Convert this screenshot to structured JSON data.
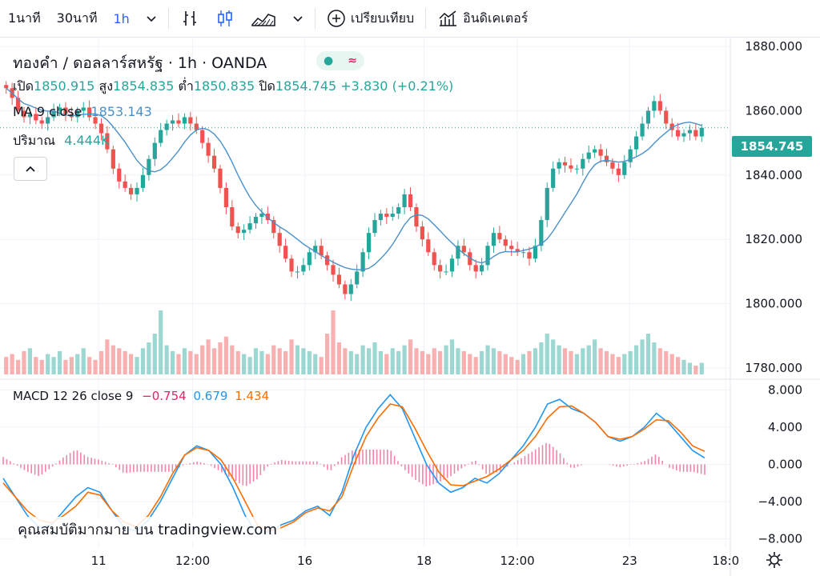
{
  "toolbar": {
    "intervals": [
      "1นาที",
      "30นาที",
      "1h"
    ],
    "active_interval": "1h",
    "compare_label": "เปรียบเทียบ",
    "indicators_label": "อินดิเคเตอร์"
  },
  "legend": {
    "symbol": "ทองคำ / ดอลลาร์สหรัฐ · 1h · OANDA",
    "open_label": "เปิด",
    "open": "1850.915",
    "high_label": "สูง",
    "high": "1854.835",
    "low_label": "ต่ำ",
    "low": "1850.835",
    "close_label": "ปิด",
    "close": "1854.745",
    "change": "+3.830 (+0.21%)",
    "ma_label": "MA 9 close",
    "ma_value": "1853.143",
    "volume_label": "ปริมาณ",
    "volume_value": "4.444K",
    "macd_label": "MACD 12 26 close 9",
    "macd_hist": "−0.754",
    "macd_line": "0.679",
    "macd_signal": "1.434"
  },
  "watermark": "คุณสมบัติมากมาย บน tradingview.com",
  "colors": {
    "up": "#26a69a",
    "down": "#ef5350",
    "ma": "#2962ff",
    "macd": "#2196f3",
    "signal": "#ff6d00",
    "hist": "#e91e63"
  },
  "chart_data": [
    {
      "type": "candlestick",
      "title": "ทองคำ / ดอลลาร์สหรัฐ · 1h · OANDA",
      "y_axis_ticks": [
        "1880.000",
        "1860.000",
        "1840.000",
        "1820.000",
        "1800.000",
        "1780.000"
      ],
      "ylim": [
        1778,
        1882
      ],
      "last_price_label": "1854.745",
      "x_ticks": [
        "11",
        "12:00",
        "16",
        "18",
        "12:00",
        "23",
        "18:0"
      ],
      "close_series": [
        1867,
        1864,
        1860,
        1858,
        1859,
        1857,
        1856,
        1858,
        1860,
        1861,
        1859,
        1858,
        1860,
        1861,
        1858,
        1856,
        1853,
        1848,
        1842,
        1838,
        1836,
        1834,
        1836,
        1840,
        1845,
        1850,
        1854,
        1856,
        1857,
        1856,
        1858,
        1856,
        1854,
        1850,
        1846,
        1842,
        1836,
        1830,
        1824,
        1822,
        1823,
        1825,
        1827,
        1828,
        1826,
        1822,
        1818,
        1814,
        1810,
        1810,
        1812,
        1816,
        1818,
        1815,
        1812,
        1809,
        1806,
        1803,
        1806,
        1810,
        1816,
        1822,
        1826,
        1828,
        1827,
        1828,
        1830,
        1834,
        1830,
        1824,
        1820,
        1816,
        1812,
        1810,
        1810,
        1814,
        1818,
        1816,
        1812,
        1810,
        1812,
        1818,
        1822,
        1820,
        1818,
        1817,
        1816,
        1816,
        1814,
        1818,
        1826,
        1836,
        1842,
        1844,
        1843,
        1842,
        1842,
        1845,
        1847,
        1848,
        1846,
        1844,
        1842,
        1840,
        1844,
        1848,
        1852,
        1856,
        1860,
        1863,
        1860,
        1856,
        1854,
        1852,
        1853,
        1854,
        1852,
        1854.7
      ],
      "volume_series": [
        6,
        7,
        5,
        8,
        9,
        6,
        5,
        7,
        6,
        8,
        5,
        6,
        7,
        9,
        6,
        5,
        8,
        12,
        10,
        9,
        8,
        7,
        6,
        9,
        11,
        14,
        22,
        10,
        8,
        7,
        9,
        8,
        7,
        10,
        12,
        9,
        11,
        13,
        10,
        8,
        7,
        6,
        9,
        8,
        7,
        10,
        9,
        8,
        12,
        10,
        9,
        8,
        7,
        6,
        14,
        22,
        11,
        9,
        8,
        7,
        10,
        9,
        11,
        8,
        7,
        9,
        8,
        10,
        12,
        9,
        8,
        7,
        9,
        8,
        10,
        12,
        9,
        8,
        7,
        6,
        8,
        10,
        9,
        8,
        7,
        6,
        5,
        7,
        8,
        9,
        11,
        14,
        12,
        10,
        9,
        8,
        7,
        9,
        10,
        12,
        9,
        8,
        7,
        6,
        7,
        8,
        10,
        12,
        14,
        11,
        9,
        8,
        7,
        6,
        5,
        4,
        3,
        4
      ]
    },
    {
      "type": "line",
      "title": "MACD 12 26 close 9",
      "y_axis_ticks": [
        "8.000",
        "4.000",
        "0.000",
        "−4.000",
        "−8.000"
      ],
      "ylim": [
        -9,
        9
      ],
      "series": [
        {
          "name": "MACD",
          "values": [
            -1.5,
            -3.5,
            -5.5,
            -6.8,
            -6.5,
            -5,
            -3.5,
            -2.5,
            -3,
            -5,
            -6.8,
            -7.2,
            -6,
            -4,
            -1.5,
            1,
            2,
            1.5,
            0,
            -2.5,
            -5.5,
            -7.5,
            -7.2,
            -6.5,
            -6,
            -5,
            -4.5,
            -5.5,
            -3,
            1,
            4,
            6,
            7.5,
            6,
            3,
            0,
            -2,
            -3,
            -2.5,
            -1.5,
            -2,
            -1,
            0.5,
            2,
            4,
            6.5,
            7,
            6,
            5.5,
            4.5,
            3,
            2.5,
            3,
            4,
            5.5,
            4.5,
            3,
            1.5,
            0.7
          ]
        },
        {
          "name": "Signal",
          "values": [
            -2,
            -3.5,
            -5,
            -6,
            -6.3,
            -5.5,
            -4.5,
            -3,
            -3.3,
            -5,
            -6.2,
            -6.7,
            -5.5,
            -3.5,
            -1,
            1,
            1.8,
            1.5,
            0.5,
            -1.5,
            -4,
            -6.5,
            -7.2,
            -6.8,
            -6.2,
            -5.2,
            -4.7,
            -5,
            -3.5,
            0,
            3,
            5,
            6.5,
            6.2,
            4,
            1.5,
            -0.8,
            -2.2,
            -2.3,
            -1.8,
            -1.3,
            -0.5,
            0.5,
            1.5,
            3,
            5,
            6.2,
            6.3,
            5.5,
            4.5,
            3,
            2.7,
            3,
            3.8,
            4.8,
            4.7,
            3.5,
            2,
            1.4
          ]
        }
      ],
      "legend_values": [
        "−0.754",
        "0.679",
        "1.434"
      ]
    }
  ]
}
